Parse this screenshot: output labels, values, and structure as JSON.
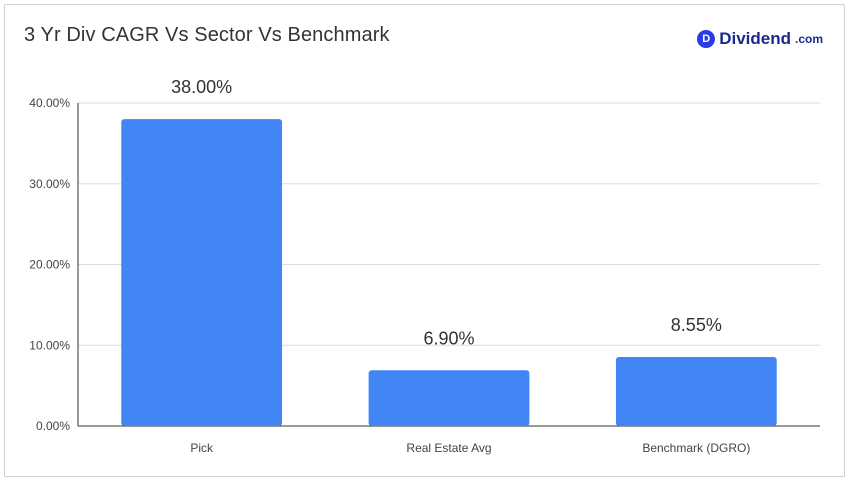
{
  "title": "3 Yr Div CAGR Vs Sector Vs Benchmark",
  "brand": {
    "badge": "D",
    "name": "Dividend",
    "tld": ".com",
    "color": "#2b3be8"
  },
  "chart_data": {
    "type": "bar",
    "title": "3 Yr Div CAGR Vs Sector Vs Benchmark",
    "categories": [
      "Pick",
      "Real Estate Avg",
      "Benchmark (DGRO)"
    ],
    "values": [
      38.0,
      6.9,
      8.55
    ],
    "data_labels": [
      "38.00%",
      "6.90%",
      "8.55%"
    ],
    "xlabel": "",
    "ylabel": "",
    "ylim": [
      0,
      40
    ],
    "yticks": [
      0,
      10,
      20,
      30,
      40
    ],
    "ytick_labels": [
      "0.00%",
      "10.00%",
      "20.00%",
      "30.00%",
      "40.00%"
    ],
    "grid": true,
    "legend": "none",
    "bar_color": "#4285f4",
    "grid_color": "#dddddd",
    "axis_color": "#333333"
  }
}
